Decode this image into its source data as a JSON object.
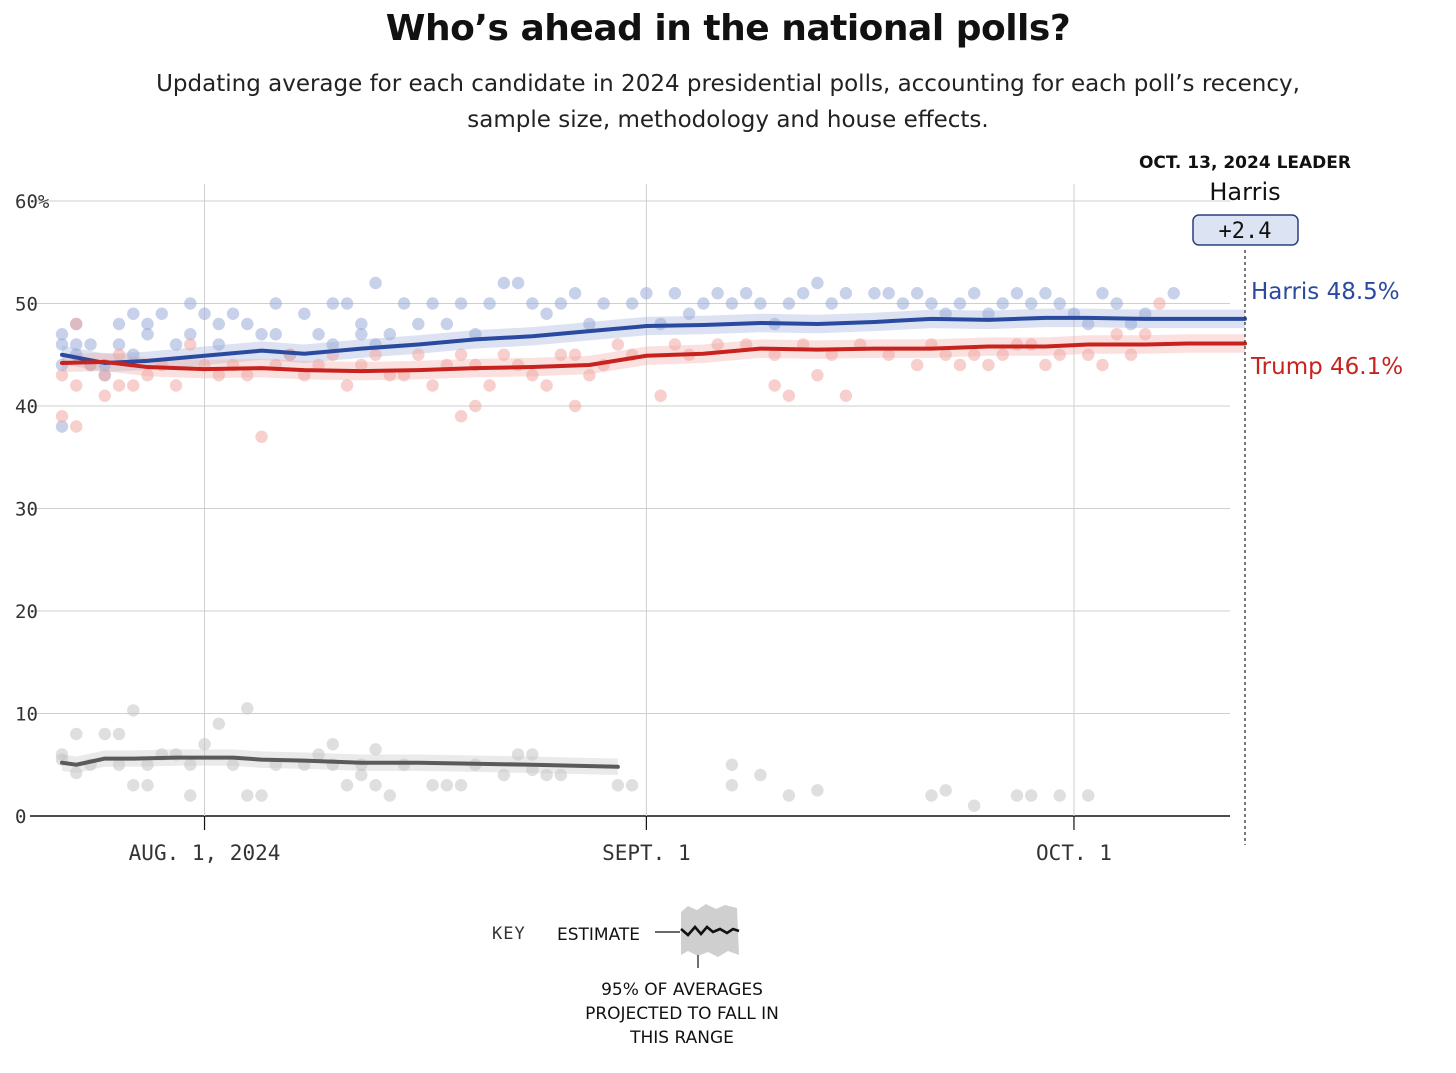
{
  "header": {
    "title": "Who’s ahead in the national polls?",
    "subtitle": "Updating average for each candidate in 2024 presidential polls, accounting for each poll’s recency, sample size, methodology and house effects."
  },
  "leader": {
    "label": "OCT. 13, 2024 LEADER",
    "name": "Harris",
    "margin": "+2.4"
  },
  "key": {
    "label": "KEY",
    "estimate_label": "ESTIMATE",
    "range_lines": [
      "95% OF AVERAGES",
      "PROJECTED TO FALL IN",
      "THIS RANGE"
    ]
  },
  "colors": {
    "harris": "#2a4aa0",
    "trump": "#c8221e",
    "other": "#5a5a5a",
    "harris_dot": "#9aabd8",
    "trump_dot": "#f0a8a2",
    "other_dot": "#c4c4c4",
    "grid": "#cfcfcf",
    "badge_fill": "#dce3f3"
  },
  "chart_data": {
    "type": "line",
    "x_type": "date",
    "xlim": [
      "2024-07-22",
      "2024-10-13"
    ],
    "ylim": [
      0,
      60
    ],
    "y_ticks": [
      0,
      10,
      20,
      30,
      40,
      50,
      60
    ],
    "y_tick_labels": [
      "0",
      "10",
      "20",
      "30",
      "40",
      "50",
      "60%"
    ],
    "x_ticks": [
      {
        "date": "2024-08-01",
        "label": "AUG. 1, 2024"
      },
      {
        "date": "2024-09-01",
        "label": "SEPT. 1"
      },
      {
        "date": "2024-10-01",
        "label": "OCT. 1"
      }
    ],
    "grid": true,
    "series": [
      {
        "name": "Harris",
        "end_label": "Harris 48.5%",
        "band": 0.9,
        "x": [
          "2024-07-22",
          "2024-07-25",
          "2024-07-28",
          "2024-08-01",
          "2024-08-05",
          "2024-08-08",
          "2024-08-12",
          "2024-08-16",
          "2024-08-20",
          "2024-08-24",
          "2024-08-28",
          "2024-09-01",
          "2024-09-05",
          "2024-09-09",
          "2024-09-13",
          "2024-09-17",
          "2024-09-21",
          "2024-09-25",
          "2024-09-29",
          "2024-10-02",
          "2024-10-06",
          "2024-10-09",
          "2024-10-13"
        ],
        "y": [
          45.0,
          44.2,
          44.4,
          44.9,
          45.4,
          45.1,
          45.6,
          46.0,
          46.5,
          46.8,
          47.3,
          47.8,
          47.9,
          48.1,
          48.0,
          48.2,
          48.5,
          48.4,
          48.6,
          48.6,
          48.5,
          48.5,
          48.5
        ],
        "polls": [
          [
            0,
            44
          ],
          [
            0,
            46
          ],
          [
            0,
            47
          ],
          [
            0,
            38
          ],
          [
            1,
            45
          ],
          [
            1,
            48
          ],
          [
            1,
            46
          ],
          [
            2,
            44
          ],
          [
            2,
            46
          ],
          [
            3,
            43
          ],
          [
            3,
            44
          ],
          [
            4,
            48
          ],
          [
            4,
            46
          ],
          [
            5,
            45
          ],
          [
            5,
            49
          ],
          [
            6,
            48
          ],
          [
            6,
            47
          ],
          [
            7,
            49
          ],
          [
            8,
            46
          ],
          [
            9,
            50
          ],
          [
            9,
            47
          ],
          [
            10,
            49
          ],
          [
            11,
            48
          ],
          [
            11,
            46
          ],
          [
            12,
            49
          ],
          [
            13,
            48
          ],
          [
            14,
            47
          ],
          [
            15,
            50
          ],
          [
            15,
            47
          ],
          [
            16,
            45
          ],
          [
            17,
            49
          ],
          [
            18,
            47
          ],
          [
            19,
            50
          ],
          [
            19,
            46
          ],
          [
            20,
            50
          ],
          [
            21,
            48
          ],
          [
            21,
            47
          ],
          [
            22,
            52
          ],
          [
            22,
            46
          ],
          [
            23,
            47
          ],
          [
            24,
            50
          ],
          [
            25,
            48
          ],
          [
            26,
            50
          ],
          [
            27,
            48
          ],
          [
            28,
            50
          ],
          [
            29,
            47
          ],
          [
            30,
            50
          ],
          [
            31,
            52
          ],
          [
            32,
            52
          ],
          [
            33,
            50
          ],
          [
            34,
            49
          ],
          [
            35,
            50
          ],
          [
            36,
            51
          ],
          [
            37,
            48
          ],
          [
            38,
            50
          ],
          [
            40,
            50
          ],
          [
            41,
            51
          ],
          [
            42,
            48
          ],
          [
            43,
            51
          ],
          [
            44,
            49
          ],
          [
            45,
            50
          ],
          [
            46,
            51
          ],
          [
            47,
            50
          ],
          [
            48,
            51
          ],
          [
            49,
            50
          ],
          [
            50,
            48
          ],
          [
            51,
            50
          ],
          [
            52,
            51
          ],
          [
            53,
            52
          ],
          [
            54,
            50
          ],
          [
            55,
            51
          ],
          [
            57,
            51
          ],
          [
            58,
            51
          ],
          [
            59,
            50
          ],
          [
            60,
            51
          ],
          [
            61,
            50
          ],
          [
            62,
            49
          ],
          [
            63,
            50
          ],
          [
            64,
            51
          ],
          [
            65,
            49
          ],
          [
            66,
            50
          ],
          [
            67,
            51
          ],
          [
            68,
            50
          ],
          [
            69,
            51
          ],
          [
            70,
            50
          ],
          [
            71,
            49
          ],
          [
            72,
            48
          ],
          [
            73,
            51
          ],
          [
            74,
            50
          ],
          [
            75,
            48
          ],
          [
            76,
            49
          ],
          [
            78,
            51
          ]
        ]
      },
      {
        "name": "Trump",
        "end_label": "Trump 46.1%",
        "band": 0.9,
        "x": [
          "2024-07-22",
          "2024-07-25",
          "2024-07-28",
          "2024-08-01",
          "2024-08-05",
          "2024-08-08",
          "2024-08-12",
          "2024-08-16",
          "2024-08-20",
          "2024-08-24",
          "2024-08-28",
          "2024-09-01",
          "2024-09-05",
          "2024-09-09",
          "2024-09-13",
          "2024-09-17",
          "2024-09-21",
          "2024-09-25",
          "2024-09-29",
          "2024-10-02",
          "2024-10-06",
          "2024-10-09",
          "2024-10-13"
        ],
        "y": [
          44.2,
          44.3,
          43.8,
          43.6,
          43.7,
          43.5,
          43.4,
          43.5,
          43.7,
          43.8,
          44.0,
          44.9,
          45.1,
          45.6,
          45.5,
          45.6,
          45.6,
          45.8,
          45.8,
          46.0,
          46.0,
          46.1,
          46.1
        ],
        "polls": [
          [
            0,
            39
          ],
          [
            0,
            43
          ],
          [
            1,
            38
          ],
          [
            1,
            48
          ],
          [
            1,
            42
          ],
          [
            2,
            44
          ],
          [
            3,
            41
          ],
          [
            3,
            43
          ],
          [
            4,
            42
          ],
          [
            4,
            45
          ],
          [
            5,
            42
          ],
          [
            6,
            43
          ],
          [
            7,
            44
          ],
          [
            8,
            42
          ],
          [
            9,
            46
          ],
          [
            10,
            44
          ],
          [
            11,
            43
          ],
          [
            12,
            44
          ],
          [
            13,
            43
          ],
          [
            14,
            37
          ],
          [
            15,
            44
          ],
          [
            16,
            45
          ],
          [
            17,
            43
          ],
          [
            18,
            44
          ],
          [
            19,
            45
          ],
          [
            20,
            42
          ],
          [
            21,
            44
          ],
          [
            22,
            45
          ],
          [
            23,
            43
          ],
          [
            24,
            43
          ],
          [
            25,
            45
          ],
          [
            26,
            42
          ],
          [
            27,
            44
          ],
          [
            28,
            39
          ],
          [
            28,
            45
          ],
          [
            29,
            40
          ],
          [
            29,
            44
          ],
          [
            30,
            42
          ],
          [
            31,
            45
          ],
          [
            32,
            44
          ],
          [
            33,
            43
          ],
          [
            34,
            42
          ],
          [
            35,
            45
          ],
          [
            36,
            40
          ],
          [
            36,
            45
          ],
          [
            37,
            43
          ],
          [
            38,
            44
          ],
          [
            39,
            46
          ],
          [
            40,
            45
          ],
          [
            42,
            41
          ],
          [
            43,
            46
          ],
          [
            44,
            45
          ],
          [
            46,
            46
          ],
          [
            48,
            46
          ],
          [
            50,
            42
          ],
          [
            50,
            45
          ],
          [
            51,
            41
          ],
          [
            52,
            46
          ],
          [
            53,
            43
          ],
          [
            54,
            45
          ],
          [
            55,
            41
          ],
          [
            56,
            46
          ],
          [
            58,
            45
          ],
          [
            60,
            44
          ],
          [
            61,
            46
          ],
          [
            62,
            45
          ],
          [
            63,
            44
          ],
          [
            64,
            45
          ],
          [
            65,
            44
          ],
          [
            66,
            45
          ],
          [
            67,
            46
          ],
          [
            68,
            46
          ],
          [
            69,
            44
          ],
          [
            70,
            45
          ],
          [
            72,
            45
          ],
          [
            73,
            44
          ],
          [
            74,
            47
          ],
          [
            75,
            45
          ],
          [
            76,
            47
          ],
          [
            77,
            50
          ]
        ]
      },
      {
        "name": "Other",
        "band": 0.8,
        "x": [
          "2024-07-22",
          "2024-07-23",
          "2024-07-25",
          "2024-07-27",
          "2024-07-30",
          "2024-08-01",
          "2024-08-03",
          "2024-08-05",
          "2024-08-08",
          "2024-08-12",
          "2024-08-16",
          "2024-08-20",
          "2024-08-24",
          "2024-08-27",
          "2024-08-30"
        ],
        "y": [
          5.2,
          5.0,
          5.6,
          5.6,
          5.7,
          5.7,
          5.7,
          5.5,
          5.4,
          5.2,
          5.2,
          5.1,
          5.0,
          4.9,
          4.8
        ],
        "polls": [
          [
            0,
            6
          ],
          [
            0,
            5.5
          ],
          [
            1,
            4.2
          ],
          [
            1,
            8
          ],
          [
            2,
            5
          ],
          [
            3,
            8
          ],
          [
            4,
            5
          ],
          [
            4,
            8
          ],
          [
            5,
            3
          ],
          [
            5,
            10.3
          ],
          [
            6,
            5
          ],
          [
            6,
            3
          ],
          [
            7,
            6
          ],
          [
            8,
            6
          ],
          [
            9,
            2
          ],
          [
            9,
            5
          ],
          [
            10,
            7
          ],
          [
            11,
            9
          ],
          [
            12,
            5
          ],
          [
            13,
            2
          ],
          [
            13,
            10.5
          ],
          [
            14,
            2
          ],
          [
            15,
            5
          ],
          [
            17,
            5
          ],
          [
            18,
            6
          ],
          [
            19,
            7
          ],
          [
            19,
            5
          ],
          [
            20,
            3
          ],
          [
            21,
            4
          ],
          [
            21,
            5
          ],
          [
            22,
            6.5
          ],
          [
            22,
            3
          ],
          [
            23,
            2
          ],
          [
            24,
            5
          ],
          [
            26,
            3
          ],
          [
            27,
            3
          ],
          [
            28,
            3
          ],
          [
            29,
            5
          ],
          [
            31,
            4
          ],
          [
            32,
            6
          ],
          [
            33,
            6
          ],
          [
            33,
            4.5
          ],
          [
            34,
            4
          ],
          [
            35,
            4
          ],
          [
            39,
            3
          ],
          [
            40,
            3
          ],
          [
            47,
            5
          ],
          [
            47,
            3
          ],
          [
            49,
            4
          ],
          [
            51,
            2
          ],
          [
            53,
            2.5
          ],
          [
            61,
            2
          ],
          [
            62,
            2.5
          ],
          [
            64,
            1
          ],
          [
            67,
            2
          ],
          [
            68,
            2
          ],
          [
            70,
            2
          ],
          [
            72,
            2
          ]
        ]
      }
    ]
  }
}
